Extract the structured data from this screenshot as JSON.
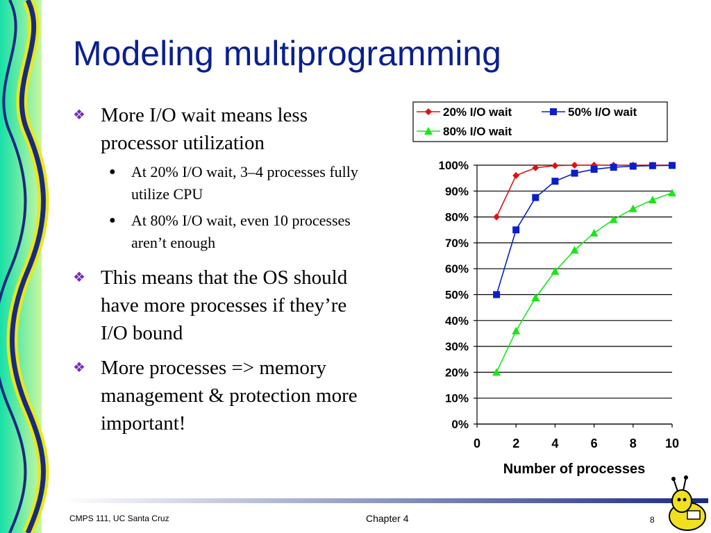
{
  "slide": {
    "title": "Modeling multiprogramming",
    "bullets": [
      {
        "text": "More I/O wait means less processor utilization",
        "sub": [
          "At 20% I/O wait, 3–4 processes fully utilize CPU",
          "At 80% I/O wait, even 10 processes aren’t enough"
        ]
      },
      {
        "text": "This means that the OS should have more processes if they’re I/O bound"
      },
      {
        "text": "More processes => memory management & protection more important!"
      }
    ],
    "bullet_marker": "❖",
    "sub_marker": "●"
  },
  "footer": {
    "left": "CMPS 111, UC Santa Cruz",
    "center": "Chapter 4",
    "page": "8"
  },
  "colors": {
    "title": "#0a1f8f",
    "bullet_mark": "#7a2bb8",
    "series_20": "#e01010",
    "series_50": "#0a1fc8",
    "series_80": "#19e619"
  },
  "chart_data": {
    "type": "line",
    "xlabel": "Number of processes",
    "ylabel": "",
    "xlim": [
      0,
      10
    ],
    "ylim": [
      0,
      100
    ],
    "x_ticks": [
      "0",
      "2",
      "4",
      "6",
      "8",
      "10"
    ],
    "y_ticks": [
      "0%",
      "10%",
      "20%",
      "30%",
      "40%",
      "50%",
      "60%",
      "70%",
      "80%",
      "90%",
      "100%"
    ],
    "grid": "horizontal",
    "legend_position": "top",
    "series": [
      {
        "name": "20% I/O wait",
        "marker": "diamond",
        "color": "#e01010",
        "x": [
          1,
          2,
          3,
          4,
          5,
          6,
          7,
          8,
          9,
          10
        ],
        "values": [
          80,
          96,
          99,
          99.8,
          100,
          100,
          100,
          100,
          100,
          100
        ]
      },
      {
        "name": "50% I/O wait",
        "marker": "square",
        "color": "#0a1fc8",
        "x": [
          1,
          2,
          3,
          4,
          5,
          6,
          7,
          8,
          9,
          10
        ],
        "values": [
          50,
          75,
          87.5,
          93.8,
          96.9,
          98.4,
          99.2,
          99.6,
          99.8,
          99.9
        ]
      },
      {
        "name": "80% I/O wait",
        "marker": "triangle",
        "color": "#19e619",
        "x": [
          1,
          2,
          3,
          4,
          5,
          6,
          7,
          8,
          9,
          10
        ],
        "values": [
          20,
          36,
          48.8,
          59,
          67.2,
          73.8,
          79,
          83.2,
          86.6,
          89.3
        ]
      }
    ]
  }
}
